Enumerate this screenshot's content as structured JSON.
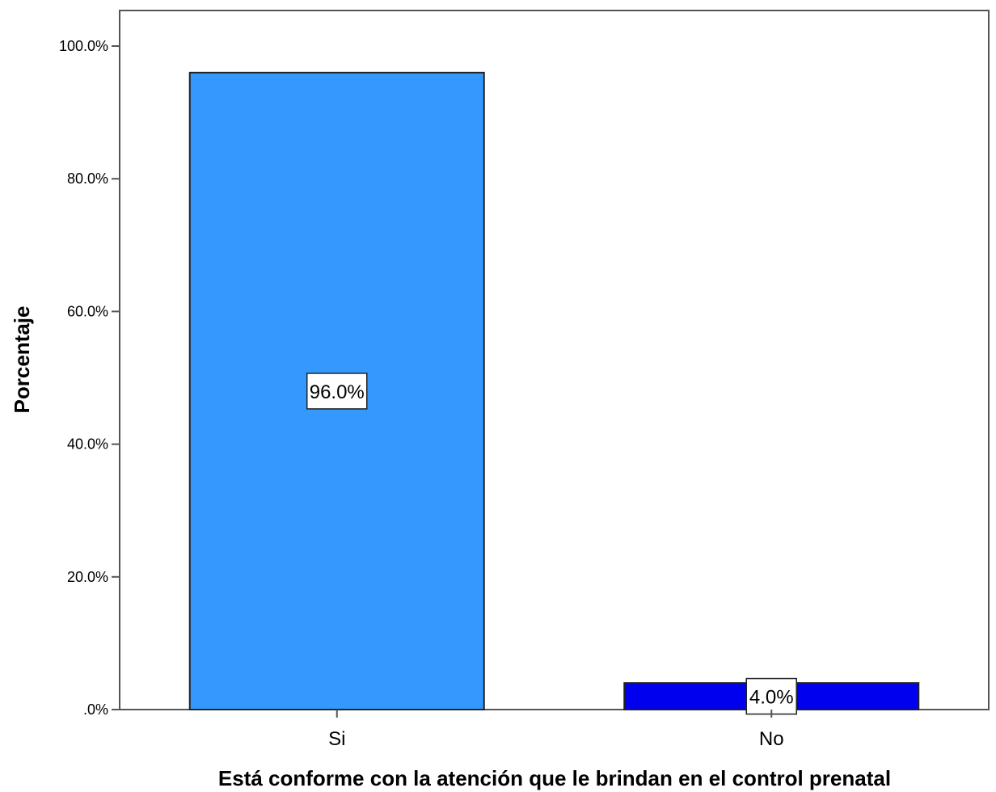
{
  "chart_data": {
    "type": "bar",
    "categories": [
      "Si",
      "No"
    ],
    "values": [
      96.0,
      4.0
    ],
    "data_labels": [
      "96.0%",
      "4.0%"
    ],
    "colors": [
      "#3399ff",
      "#0000ee"
    ],
    "xlabel": "Está conforme con la atención que le brindan en el control prenatal",
    "ylabel": "Porcentaje",
    "ylim": [
      0,
      100
    ],
    "yticks": [
      0,
      20,
      40,
      60,
      80,
      100
    ],
    "ytick_labels": [
      ".0%",
      "20.0%",
      "40.0%",
      "60.0%",
      "80.0%",
      "100.0%"
    ],
    "grid": false,
    "legend": false
  }
}
